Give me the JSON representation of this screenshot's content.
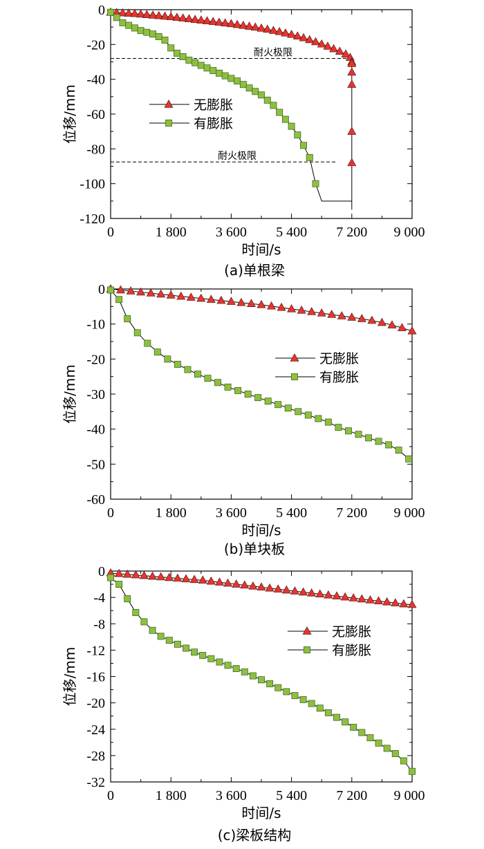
{
  "chart_data": [
    {
      "type": "line",
      "caption": "(a)单根梁",
      "xlabel": "时间/s",
      "ylabel": "位移/mm",
      "xlim": [
        0,
        9000
      ],
      "ylim": [
        -120,
        0
      ],
      "xticks": [
        0,
        1800,
        3600,
        5400,
        7200,
        9000
      ],
      "xtick_labels": [
        "0",
        "1 800",
        "3 600",
        "5 400",
        "7 200",
        "9 000"
      ],
      "yticks": [
        0,
        -20,
        -40,
        -60,
        -80,
        -100,
        -120
      ],
      "ytick_labels": [
        "0",
        "-20",
        "-40",
        "-60",
        "-80",
        "-100",
        "-120"
      ],
      "grid": false,
      "legend_position": "middle-left",
      "annotations": [
        {
          "text": "耐火极限",
          "x_start": 0,
          "x_end": 7200,
          "y": -28
        },
        {
          "text": "耐火极限",
          "x_start": 0,
          "x_end": 6750,
          "y": -87.5
        }
      ],
      "series": [
        {
          "name": "无膨胀",
          "marker": "triangle",
          "color": "#e8342f",
          "x": [
            0,
            180,
            360,
            540,
            720,
            900,
            1080,
            1260,
            1440,
            1620,
            1800,
            1980,
            2160,
            2340,
            2520,
            2700,
            2880,
            3060,
            3240,
            3420,
            3600,
            3780,
            3960,
            4140,
            4320,
            4500,
            4680,
            4860,
            5040,
            5220,
            5400,
            5580,
            5760,
            5940,
            6120,
            6300,
            6480,
            6660,
            6840,
            7020,
            7150,
            7200,
            7200,
            7200,
            7200,
            7200,
            7200,
            7200
          ],
          "y": [
            -1.5,
            -1.7,
            -1.9,
            -2.1,
            -2.3,
            -2.6,
            -2.9,
            -3.2,
            -3.5,
            -3.8,
            -4.1,
            -4.5,
            -4.9,
            -5.3,
            -5.7,
            -6.1,
            -6.5,
            -6.9,
            -7.3,
            -7.7,
            -8.1,
            -8.6,
            -9.1,
            -9.6,
            -10.1,
            -10.7,
            -11.3,
            -12.0,
            -12.7,
            -13.5,
            -14.3,
            -15.2,
            -16.2,
            -17.3,
            -18.5,
            -19.8,
            -21.1,
            -22.5,
            -24.0,
            -25.6,
            -27.5,
            -30,
            -31,
            -36,
            -43,
            -70,
            -88,
            -115
          ],
          "markers_on": [
            true,
            true,
            true,
            true,
            true,
            true,
            true,
            true,
            true,
            true,
            true,
            true,
            true,
            true,
            true,
            true,
            true,
            true,
            true,
            true,
            true,
            true,
            true,
            true,
            true,
            true,
            true,
            true,
            true,
            true,
            true,
            true,
            true,
            true,
            true,
            true,
            true,
            true,
            true,
            true,
            true,
            true,
            true,
            true,
            true,
            true,
            true,
            false
          ]
        },
        {
          "name": "有膨胀",
          "marker": "square",
          "color": "#8cc03f",
          "x": [
            0,
            180,
            360,
            540,
            720,
            900,
            1080,
            1260,
            1440,
            1620,
            1800,
            1980,
            2160,
            2340,
            2520,
            2700,
            2880,
            3060,
            3240,
            3420,
            3600,
            3780,
            3960,
            4140,
            4320,
            4500,
            4680,
            4860,
            5040,
            5220,
            5400,
            5580,
            5760,
            5940,
            6120,
            6300,
            6480,
            6660,
            6840,
            7020,
            7200,
            7200,
            7200,
            7200
          ],
          "y": [
            -1.5,
            -4.5,
            -7.5,
            -9,
            -10.5,
            -12,
            -13,
            -14,
            -15.5,
            -17.5,
            -22,
            -25,
            -27,
            -29,
            -30.5,
            -32,
            -33.5,
            -35,
            -36.5,
            -38,
            -39.5,
            -41,
            -43,
            -45,
            -47,
            -49,
            -52,
            -55,
            -59,
            -63,
            -67,
            -72,
            -78,
            -85,
            -100,
            -110,
            -110,
            -110,
            -110,
            -110,
            -110,
            -110,
            -110,
            -110
          ],
          "markers_on": [
            true,
            true,
            true,
            true,
            true,
            true,
            true,
            true,
            true,
            true,
            true,
            true,
            true,
            true,
            true,
            true,
            true,
            true,
            true,
            true,
            true,
            true,
            true,
            true,
            true,
            true,
            true,
            true,
            true,
            true,
            true,
            true,
            true,
            true,
            true,
            false,
            false,
            false,
            false,
            false,
            false,
            false,
            false,
            false
          ]
        }
      ]
    },
    {
      "type": "line",
      "caption": "(b)单块板",
      "xlabel": "时间/s",
      "ylabel": "位移/mm",
      "xlim": [
        0,
        9000
      ],
      "ylim": [
        -60,
        0
      ],
      "xticks": [
        0,
        1800,
        3600,
        5400,
        7200,
        9000
      ],
      "xtick_labels": [
        "0",
        "1 800",
        "3 600",
        "5 400",
        "7 200",
        "9 000"
      ],
      "yticks": [
        0,
        -10,
        -20,
        -30,
        -40,
        -50,
        -60
      ],
      "ytick_labels": [
        "0",
        "-10",
        "-20",
        "-30",
        "-40",
        "-50",
        "-60"
      ],
      "grid": false,
      "legend_position": "middle-right",
      "series": [
        {
          "name": "无膨胀",
          "marker": "triangle",
          "color": "#e8342f",
          "x": [
            0,
            300,
            600,
            900,
            1200,
            1500,
            1800,
            2100,
            2400,
            2700,
            3000,
            3300,
            3600,
            3900,
            4200,
            4500,
            4800,
            5100,
            5400,
            5700,
            6000,
            6300,
            6600,
            6900,
            7200,
            7500,
            7800,
            8100,
            8400,
            8700,
            9000
          ],
          "y": [
            0,
            -0.3,
            -0.6,
            -0.9,
            -1.2,
            -1.5,
            -1.8,
            -2.1,
            -2.4,
            -2.7,
            -3.0,
            -3.3,
            -3.6,
            -3.9,
            -4.2,
            -4.5,
            -4.9,
            -5.3,
            -5.7,
            -6.1,
            -6.5,
            -6.9,
            -7.3,
            -7.7,
            -8.1,
            -8.5,
            -9.0,
            -9.6,
            -10.3,
            -11.1,
            -12.0
          ]
        },
        {
          "name": "有膨胀",
          "marker": "square",
          "color": "#8cc03f",
          "x": [
            0,
            250,
            500,
            800,
            1100,
            1400,
            1700,
            2000,
            2300,
            2600,
            2900,
            3200,
            3500,
            3800,
            4100,
            4400,
            4700,
            5000,
            5300,
            5600,
            5900,
            6200,
            6500,
            6800,
            7100,
            7400,
            7700,
            8000,
            8300,
            8600,
            8900
          ],
          "y": [
            -0.3,
            -3,
            -8.5,
            -12.5,
            -15.5,
            -18,
            -20,
            -21.5,
            -23,
            -24.3,
            -25.5,
            -26.7,
            -28,
            -29,
            -30,
            -31,
            -32,
            -33,
            -34,
            -35,
            -36,
            -37,
            -38,
            -39.5,
            -40.5,
            -41.5,
            -42.5,
            -43.5,
            -44.5,
            -46,
            -48.5
          ]
        }
      ]
    },
    {
      "type": "line",
      "caption": "(c)梁板结构",
      "xlabel": "时间/s",
      "ylabel": "位移/mm",
      "xlim": [
        0,
        9000
      ],
      "ylim": [
        -32,
        0
      ],
      "xticks": [
        0,
        1800,
        3600,
        5400,
        7200,
        9000
      ],
      "xtick_labels": [
        "0",
        "1 800",
        "3 600",
        "5 400",
        "7 200",
        "9 000"
      ],
      "yticks": [
        0,
        -4,
        -8,
        -12,
        -16,
        -20,
        -24,
        -28,
        -32
      ],
      "ytick_labels": [
        "0",
        "-4",
        "-8",
        "-12",
        "-16",
        "-20",
        "-24",
        "-28",
        "-32"
      ],
      "grid": false,
      "legend_position": "middle-right",
      "series": [
        {
          "name": "无膨胀",
          "marker": "triangle",
          "color": "#e8342f",
          "x": [
            0,
            250,
            500,
            750,
            1000,
            1250,
            1500,
            1750,
            2000,
            2250,
            2500,
            2750,
            3000,
            3250,
            3500,
            3750,
            4000,
            4250,
            4500,
            4750,
            5000,
            5250,
            5500,
            5750,
            6000,
            6250,
            6500,
            6750,
            7000,
            7250,
            7500,
            7750,
            8000,
            8250,
            8500,
            8750,
            9000
          ],
          "y": [
            -0.3,
            -0.4,
            -0.5,
            -0.6,
            -0.7,
            -0.8,
            -0.9,
            -1.0,
            -1.1,
            -1.2,
            -1.3,
            -1.4,
            -1.55,
            -1.7,
            -1.85,
            -2.0,
            -2.15,
            -2.3,
            -2.45,
            -2.6,
            -2.75,
            -2.9,
            -3.05,
            -3.2,
            -3.35,
            -3.5,
            -3.65,
            -3.8,
            -3.95,
            -4.1,
            -4.25,
            -4.4,
            -4.55,
            -4.7,
            -4.85,
            -5.0,
            -5.1
          ]
        },
        {
          "name": "有膨胀",
          "marker": "square",
          "color": "#8cc03f",
          "x": [
            0,
            250,
            500,
            750,
            1000,
            1250,
            1500,
            1750,
            2000,
            2250,
            2500,
            2750,
            3000,
            3250,
            3500,
            3750,
            4000,
            4250,
            4500,
            4750,
            5000,
            5250,
            5500,
            5750,
            6000,
            6250,
            6500,
            6750,
            7000,
            7250,
            7500,
            7750,
            8000,
            8250,
            8500,
            8750,
            9000
          ],
          "y": [
            -1.0,
            -2.0,
            -4.2,
            -6.3,
            -7.7,
            -9.0,
            -9.9,
            -10.5,
            -11.1,
            -11.7,
            -12.3,
            -12.8,
            -13.3,
            -13.8,
            -14.3,
            -14.8,
            -15.3,
            -15.9,
            -16.5,
            -17.1,
            -17.7,
            -18.3,
            -18.9,
            -19.5,
            -20.1,
            -20.8,
            -21.5,
            -22.2,
            -22.9,
            -23.7,
            -24.5,
            -25.3,
            -26.1,
            -26.9,
            -27.7,
            -28.8,
            -30.4
          ]
        }
      ]
    }
  ]
}
